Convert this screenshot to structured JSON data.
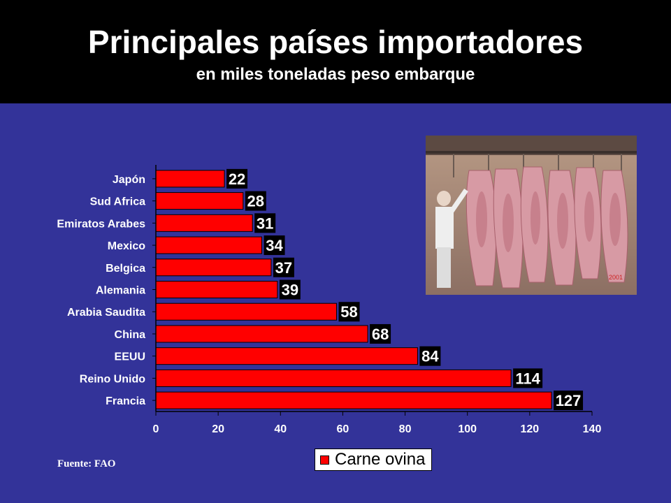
{
  "slide": {
    "title": "Principales países importadores",
    "subtitle": "en miles toneladas peso embarque",
    "source": "Fuente: FAO",
    "photo_watermark": "2001"
  },
  "colors": {
    "background": "#333399",
    "header": "#000000",
    "bar": "#ff0000",
    "label_box": "#000000",
    "text": "#ffffff"
  },
  "chart_data": {
    "type": "bar",
    "orientation": "horizontal",
    "categories": [
      "Japón",
      "Sud Africa",
      "Emiratos Arabes",
      "Mexico",
      "Belgica",
      "Alemania",
      "Arabia Saudita",
      "China",
      "EEUU",
      "Reino Unido",
      "Francia"
    ],
    "series": [
      {
        "name": "Carne ovina",
        "values": [
          22,
          28,
          31,
          34,
          37,
          39,
          58,
          68,
          84,
          114,
          127
        ]
      }
    ],
    "data_labels": [
      "22",
      "28",
      "31",
      "34",
      "37",
      "39",
      "58",
      "68",
      "84",
      "114",
      "127"
    ],
    "xlim": [
      0,
      140
    ],
    "xticks": [
      0,
      20,
      40,
      60,
      80,
      100,
      120,
      140
    ],
    "xtick_labels": [
      "0",
      "20",
      "40",
      "60",
      "80",
      "100",
      "120",
      "140"
    ],
    "grid": false,
    "legend": {
      "placement": "bottom",
      "entries": [
        "Carne ovina"
      ]
    }
  }
}
